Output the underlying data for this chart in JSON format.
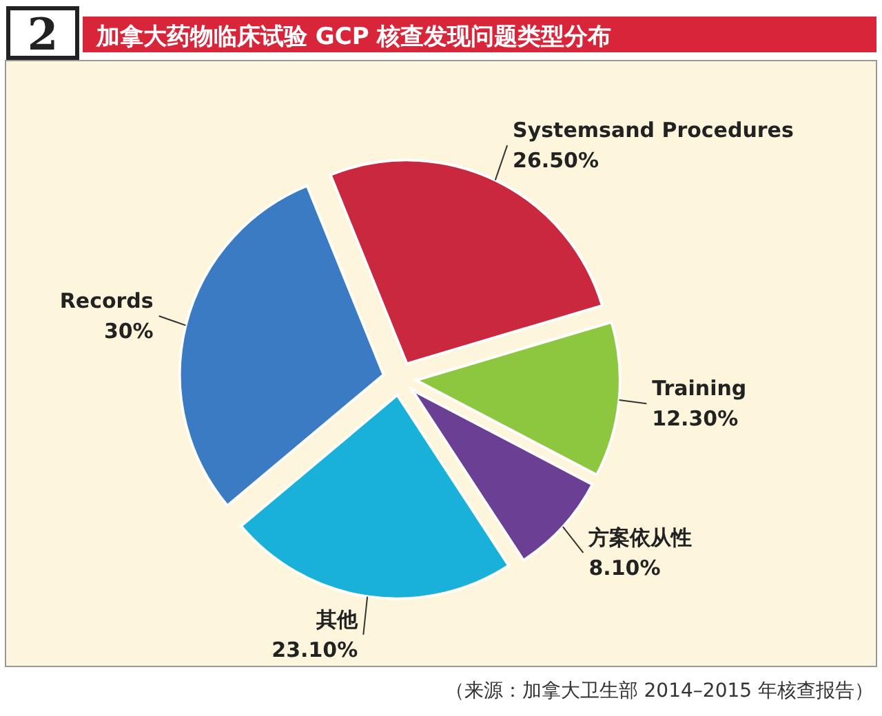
{
  "chart_data": {
    "type": "pie",
    "title": "加拿大药物临床试验 GCP 核查发现问题类型分布",
    "categories": [
      "Systemsand Procedures",
      "Training",
      "方案依从性",
      "其他",
      "Records"
    ],
    "values": [
      26.5,
      12.3,
      8.1,
      23.1,
      30
    ],
    "value_labels": [
      "26.50%",
      "12.30%",
      "8.10%",
      "23.10%",
      "30%"
    ],
    "colors": [
      "#c9283e",
      "#8dc63f",
      "#6b3f93",
      "#19b0da",
      "#3a7bc4"
    ],
    "annotations": [
      "2",
      "（来源：加拿大卫生部 2014–2015 年核查报告）"
    ]
  }
}
